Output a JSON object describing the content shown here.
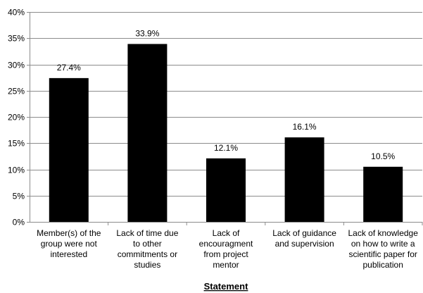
{
  "chart_data": {
    "type": "bar",
    "title": "",
    "xlabel": "Statement",
    "ylabel": "",
    "categories": [
      "Member(s) of the group were not interested",
      "Lack of time due to other commitments or studies",
      "Lack of encouragment from project mentor",
      "Lack of guidance and supervision",
      "Lack of knowledge on how to write a scientific paper for publication"
    ],
    "category_lines": [
      [
        "Member(s) of the",
        "group were not",
        "interested"
      ],
      [
        "Lack of time due",
        "to other",
        "commitments or",
        "studies"
      ],
      [
        "Lack of",
        "encouragment",
        "from project",
        "mentor"
      ],
      [
        "Lack of guidance",
        "and supervision"
      ],
      [
        "Lack of knowledge",
        "on how to write a",
        "scientific paper for",
        "publication"
      ]
    ],
    "values": [
      27.4,
      33.9,
      12.1,
      16.1,
      10.5
    ],
    "value_labels": [
      "27.4%",
      "33.9%",
      "12.1%",
      "16.1%",
      "10.5%"
    ],
    "ylim": [
      0,
      40
    ],
    "y_ticks": [
      0,
      5,
      10,
      15,
      20,
      25,
      30,
      35,
      40
    ],
    "y_tick_labels": [
      "0%",
      "5%",
      "10%",
      "15%",
      "20%",
      "25%",
      "30%",
      "35%",
      "40%"
    ],
    "grid": true,
    "legend": "none",
    "colors": {
      "bar": "#000000",
      "grid": "#8c8c8c",
      "axis": "#8c8c8c",
      "text": "#000000"
    }
  }
}
